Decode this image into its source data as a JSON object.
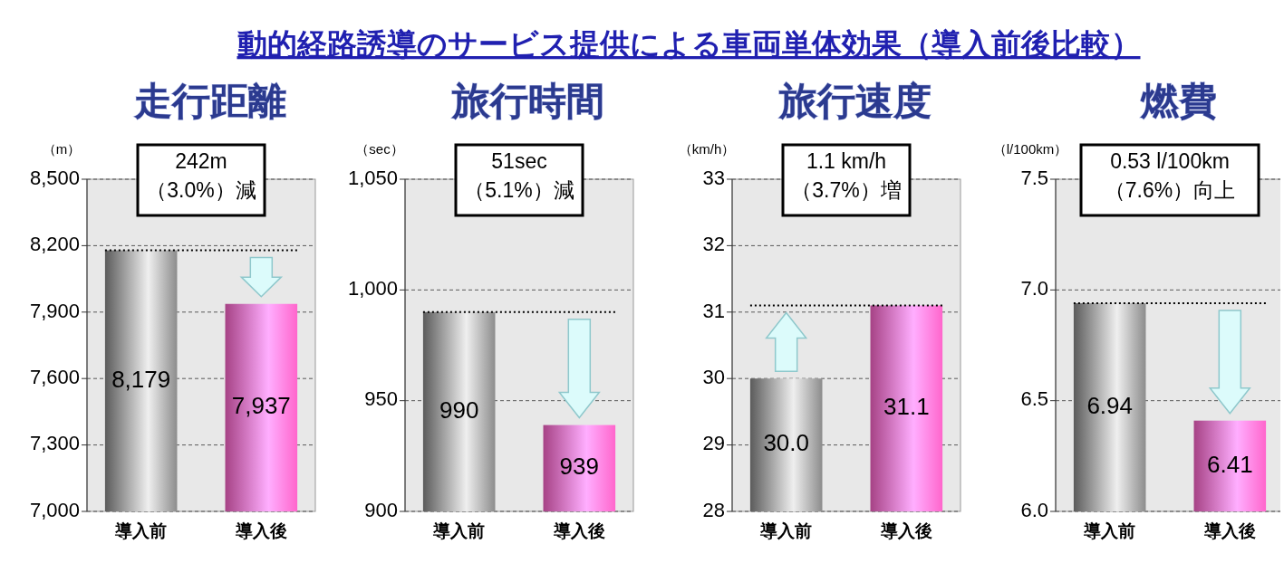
{
  "chart_data": [
    {
      "type": "bar",
      "title": "走行距離",
      "ylabel": "（m）",
      "categories": [
        "導入前",
        "導入後"
      ],
      "values": [
        8179,
        7937
      ],
      "colors": [
        "#8c8c8c",
        "#ff66cc"
      ],
      "value_labels": [
        "8,179",
        "7,937"
      ],
      "ylim": [
        7000,
        8500
      ],
      "yticks": [
        {
          "value": 7000,
          "label": "7,000"
        },
        {
          "value": 7300,
          "label": "7,300"
        },
        {
          "value": 7600,
          "label": "7,600"
        },
        {
          "value": 7900,
          "label": "7,900"
        },
        {
          "value": 8200,
          "label": "8,200"
        },
        {
          "value": 8500,
          "label": "8,500"
        }
      ],
      "grid": "y",
      "ref_lines": [
        {
          "axis": "y",
          "value": 8179,
          "line_style": "dotted",
          "color": "#000000"
        }
      ],
      "annotations": [
        "動的経路誘導のサービス提供による車両単体効果（導入前後比較）",
        "242m\n（3.0%）減"
      ]
    },
    {
      "type": "bar",
      "title": "旅行時間",
      "ylabel": "（sec）",
      "categories": [
        "導入前",
        "導入後"
      ],
      "values": [
        990,
        939
      ],
      "colors": [
        "#8c8c8c",
        "#ff66cc"
      ],
      "value_labels": [
        "990",
        "939"
      ],
      "ylim": [
        900,
        1050
      ],
      "yticks": [
        900,
        950,
        {
          "value": 1000,
          "label": "1,000"
        },
        {
          "value": 1050,
          "label": "1,050"
        }
      ],
      "grid": "y",
      "ref_lines": [
        {
          "axis": "y",
          "value": 990,
          "line_style": "dotted",
          "color": "#000000"
        }
      ],
      "annotations": [
        "51sec\n（5.1%）減"
      ]
    },
    {
      "type": "bar",
      "title": "旅行速度",
      "ylabel": "（km/h）",
      "categories": [
        "導入前",
        "導入後"
      ],
      "values": [
        30.0,
        31.1
      ],
      "colors": [
        "#8c8c8c",
        "#ff66cc"
      ],
      "value_labels": [
        "30.0",
        "31.1"
      ],
      "ylim": [
        28,
        33
      ],
      "yticks": [
        28,
        29,
        30,
        31,
        32,
        33
      ],
      "grid": "y",
      "ref_lines": [
        {
          "axis": "y",
          "value": 31.1,
          "line_style": "dotted",
          "color": "#000000"
        }
      ],
      "annotations": [
        "1.1 km/h\n（3.7%）増"
      ]
    },
    {
      "type": "bar",
      "title": "燃費",
      "ylabel": "（l/100km）",
      "categories": [
        "導入前",
        "導入後"
      ],
      "values": [
        6.94,
        6.41
      ],
      "colors": [
        "#8c8c8c",
        "#ff66cc"
      ],
      "value_labels": [
        "6.94",
        "6.41"
      ],
      "ylim": [
        6.0,
        7.5
      ],
      "yticks": [
        {
          "value": 6.0,
          "label": "6.0"
        },
        {
          "value": 6.5,
          "label": "6.5"
        },
        {
          "value": 7.0,
          "label": "7.0"
        },
        {
          "value": 7.5,
          "label": "7.5"
        }
      ],
      "grid": "y",
      "ref_lines": [
        {
          "axis": "y",
          "value": 6.94,
          "line_style": "dotted",
          "color": "#000000"
        }
      ],
      "annotations": [
        "0.53 l/100km\n（7.6%）向上"
      ]
    }
  ]
}
